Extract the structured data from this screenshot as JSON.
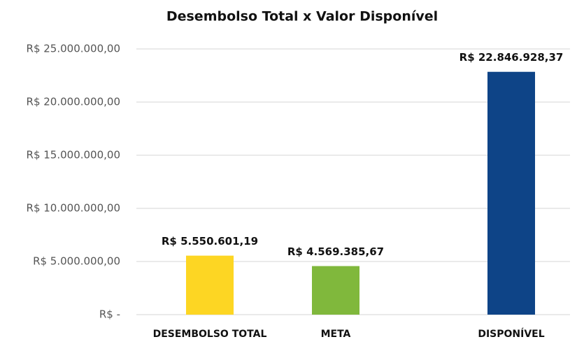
{
  "chart_data": {
    "type": "bar",
    "title": "Desembolso Total x Valor Disponível",
    "categories": [
      "DESEMBOLSO TOTAL",
      "META",
      "DISPONÍVEL"
    ],
    "values": [
      5550601.19,
      4569385.67,
      22846928.37
    ],
    "value_labels": [
      "R$ 5.550.601,19",
      "R$ 4.569.385,67",
      "R$ 22.846.928,37"
    ],
    "colors": [
      "#fdd623",
      "#80b83c",
      "#0e4487"
    ],
    "ylim": [
      0,
      25000000
    ],
    "yticks": [
      {
        "value": 0,
        "label": "R$ -"
      },
      {
        "value": 5000000,
        "label": "R$ 5.000.000,00"
      },
      {
        "value": 10000000,
        "label": "R$ 10.000.000,00"
      },
      {
        "value": 15000000,
        "label": "R$ 15.000.000,00"
      },
      {
        "value": 20000000,
        "label": "R$ 20.000.000,00"
      },
      {
        "value": 25000000,
        "label": "R$ 25.000.000,00"
      }
    ],
    "grid": true
  }
}
